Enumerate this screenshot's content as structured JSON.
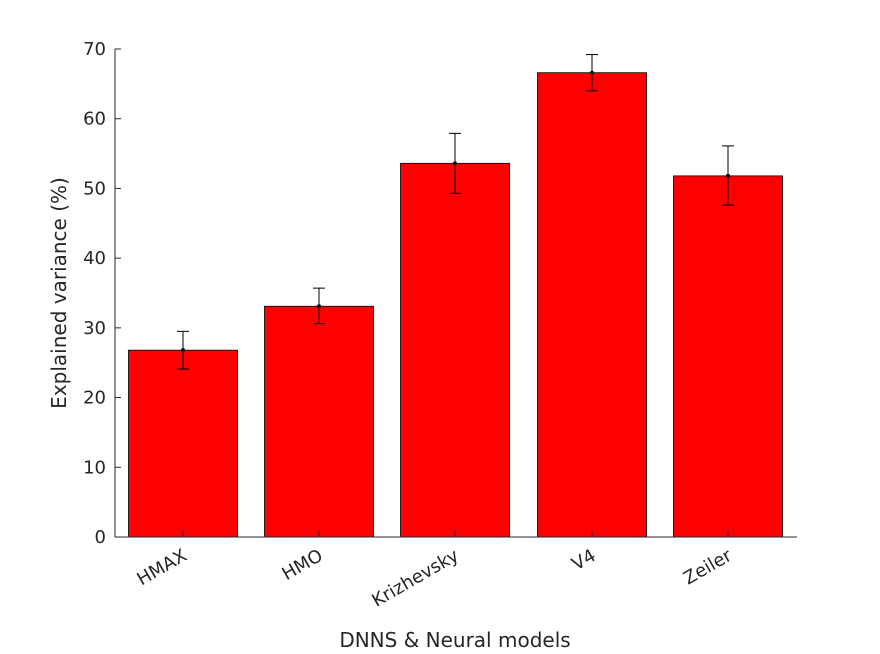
{
  "chart_data": {
    "type": "bar",
    "title": "",
    "xlabel": "DNNS & Neural models",
    "ylabel": "Explained variance (%)",
    "categories": [
      "HMAX",
      "HMO",
      "Krizhevsky",
      "V4",
      "Zeiler"
    ],
    "values": [
      26.8,
      33.1,
      53.6,
      66.6,
      51.8
    ],
    "error_low": [
      24.1,
      30.6,
      49.3,
      64.0,
      47.6
    ],
    "error_high": [
      29.5,
      35.7,
      57.9,
      69.2,
      56.1
    ],
    "ylim": [
      0,
      70
    ],
    "yticks": [
      0,
      10,
      20,
      30,
      40,
      50,
      60,
      70
    ],
    "tick_labels": [
      "0",
      "10",
      "20",
      "30",
      "40",
      "50",
      "60",
      "70"
    ],
    "bar_color": "#ff0000",
    "edge_color": "#000000",
    "grid": false
  }
}
